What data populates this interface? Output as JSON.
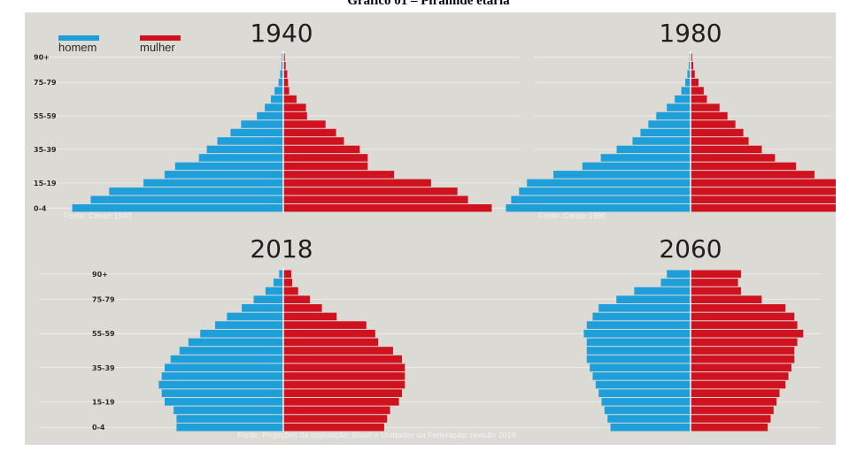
{
  "page_title": "Gráfico 01 – Pirâmide etária",
  "legend": {
    "homem": "homem",
    "mulher": "mulher"
  },
  "colors": {
    "homem": "#1e9fd9",
    "mulher": "#d0121f",
    "background": "#dcdad5",
    "divider": "#ffffff"
  },
  "chart_data": [
    {
      "type": "bar",
      "title": "1940",
      "source": "Fonte: Censo 1940",
      "categories": [
        "0-4",
        "5-9",
        "10-14",
        "15-19",
        "20-24",
        "25-29",
        "30-34",
        "35-39",
        "40-44",
        "45-49",
        "50-54",
        "55-59",
        "60-64",
        "65-69",
        "70-74",
        "75-79",
        "80-84",
        "85-89",
        "90+"
      ],
      "tick_labels": [
        "0-4",
        "15-19",
        "35-39",
        "55-59",
        "75-79",
        "90+"
      ],
      "series": [
        {
          "name": "homem",
          "values": [
            8.0,
            7.3,
            6.6,
            5.3,
            4.5,
            4.1,
            3.2,
            2.9,
            2.5,
            2.0,
            1.6,
            1.0,
            0.7,
            0.47,
            0.33,
            0.18,
            0.12,
            0.07,
            0.05
          ]
        },
        {
          "name": "mulher",
          "values": [
            7.9,
            7.0,
            6.6,
            5.6,
            4.2,
            3.2,
            3.2,
            2.9,
            2.3,
            2.0,
            1.6,
            0.9,
            0.86,
            0.5,
            0.22,
            0.18,
            0.15,
            0.09,
            0.06
          ]
        }
      ]
    },
    {
      "type": "bar",
      "title": "1980",
      "source": "Fonte: Censo 1980",
      "categories": [
        "0-4",
        "5-9",
        "10-14",
        "15-19",
        "20-24",
        "25-29",
        "30-34",
        "35-39",
        "40-44",
        "45-49",
        "50-54",
        "55-59",
        "60-64",
        "65-69",
        "70-74",
        "75-79",
        "80-84",
        "85-89",
        "90+"
      ],
      "tick_labels": [
        "0-4",
        "15-19",
        "35-39",
        "55-59",
        "75-79",
        "90+"
      ],
      "series": [
        {
          "name": "homem",
          "values": [
            7.0,
            6.8,
            6.5,
            6.2,
            5.2,
            4.1,
            3.4,
            2.8,
            2.2,
            1.9,
            1.6,
            1.3,
            0.9,
            0.6,
            0.35,
            0.2,
            0.12,
            0.07,
            0.04
          ]
        },
        {
          "name": "mulher",
          "values": [
            6.4,
            6.0,
            5.8,
            5.7,
            4.7,
            4.0,
            3.2,
            2.7,
            2.2,
            2.0,
            1.7,
            1.4,
            1.1,
            0.62,
            0.5,
            0.3,
            0.16,
            0.1,
            0.06
          ]
        }
      ]
    },
    {
      "type": "bar",
      "title": "2018",
      "source": "Fonte: Projeções da população: Brasil e Unidades da Federação: revisão 2018",
      "categories": [
        "0-4",
        "5-9",
        "10-14",
        "15-19",
        "20-24",
        "25-29",
        "30-34",
        "35-39",
        "40-44",
        "45-49",
        "50-54",
        "55-59",
        "60-64",
        "65-69",
        "70-74",
        "75-79",
        "80-84",
        "85-89",
        "90+"
      ],
      "tick_labels": [
        "0-4",
        "15-19",
        "35-39",
        "55-59",
        "75-79",
        "90+"
      ],
      "series": [
        {
          "name": "homem",
          "values": [
            3.6,
            3.6,
            3.7,
            4.0,
            4.1,
            4.2,
            4.1,
            4.0,
            3.8,
            3.5,
            3.2,
            2.8,
            2.3,
            1.9,
            1.4,
            1.0,
            0.6,
            0.33,
            0.14
          ]
        },
        {
          "name": "mulher",
          "values": [
            3.4,
            3.5,
            3.6,
            3.9,
            4.0,
            4.1,
            4.1,
            4.1,
            4.0,
            3.7,
            3.2,
            3.1,
            2.8,
            1.8,
            1.3,
            0.9,
            0.5,
            0.3,
            0.27
          ]
        }
      ]
    },
    {
      "type": "bar",
      "title": "2060",
      "source": "",
      "categories": [
        "0-4",
        "5-9",
        "10-14",
        "15-19",
        "20-24",
        "25-29",
        "30-34",
        "35-39",
        "40-44",
        "45-49",
        "50-54",
        "55-59",
        "60-64",
        "65-69",
        "70-74",
        "75-79",
        "80-84",
        "85-89",
        "90+"
      ],
      "tick_labels": [],
      "series": [
        {
          "name": "homem",
          "values": [
            2.7,
            2.8,
            2.9,
            3.0,
            3.1,
            3.2,
            3.3,
            3.4,
            3.5,
            3.5,
            3.5,
            3.6,
            3.5,
            3.3,
            3.1,
            2.5,
            1.9,
            1.0,
            0.8
          ]
        },
        {
          "name": "mulher",
          "values": [
            2.6,
            2.7,
            2.8,
            2.9,
            3.0,
            3.2,
            3.3,
            3.4,
            3.5,
            3.5,
            3.6,
            3.8,
            3.6,
            3.5,
            3.2,
            2.4,
            1.7,
            1.6,
            1.7
          ]
        }
      ]
    }
  ]
}
